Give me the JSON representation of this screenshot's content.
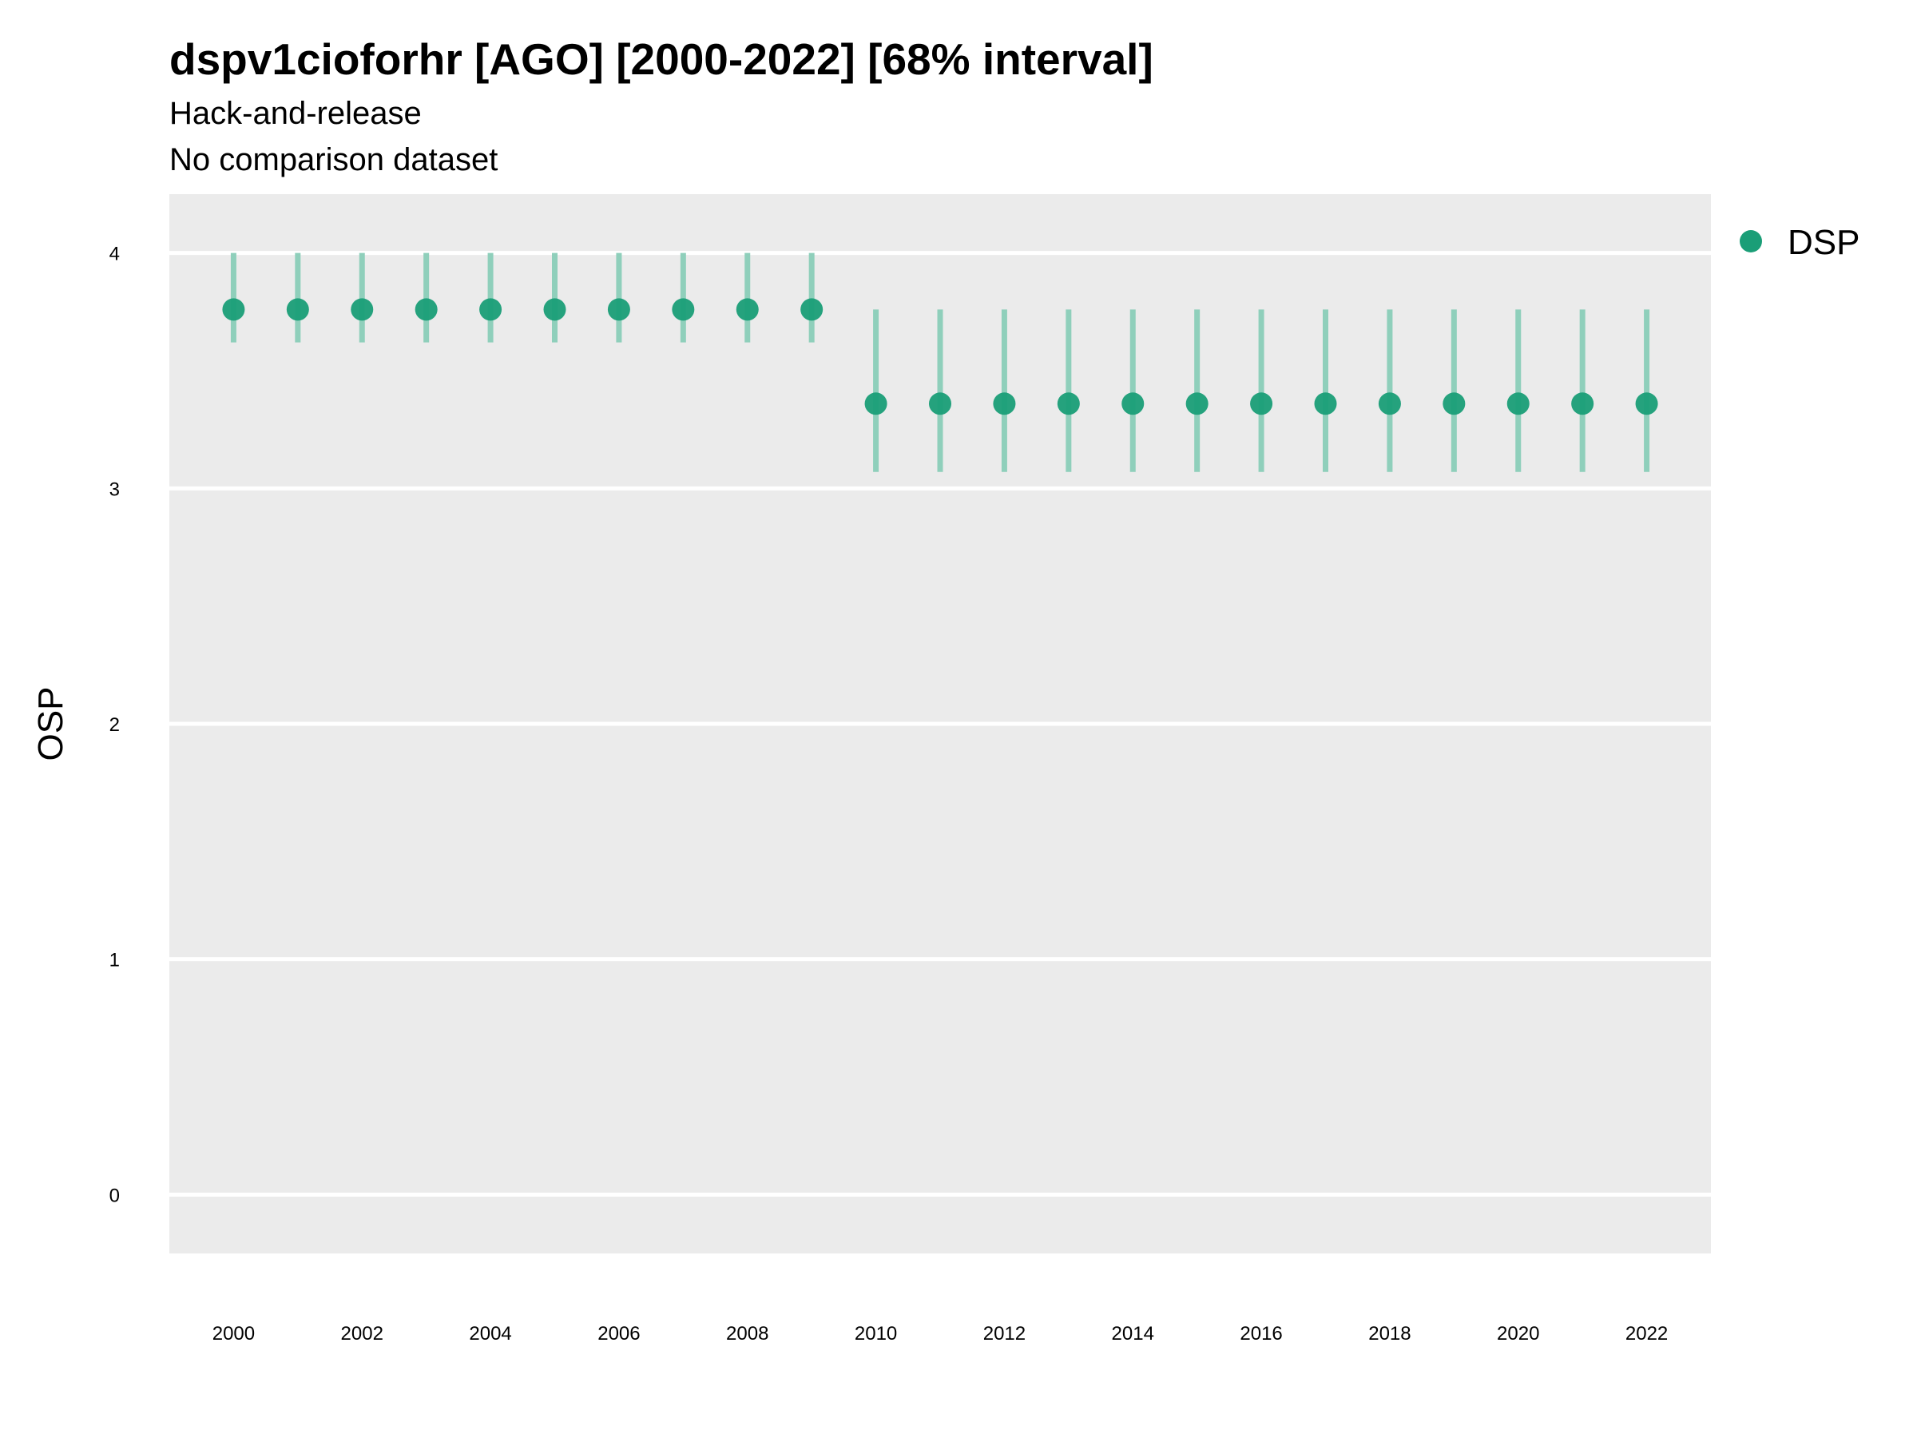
{
  "chart_data": {
    "type": "scatter",
    "title": "dspv1cioforhr [AGO] [2000-2022] [68% interval]",
    "subtitles": [
      "Hack-and-release",
      "No comparison dataset"
    ],
    "xlabel": "",
    "ylabel": "OSP",
    "xlim": [
      1999,
      2023
    ],
    "ylim": [
      -0.25,
      4.25
    ],
    "x_ticks": [
      "2000",
      "2002",
      "2004",
      "2006",
      "2008",
      "2010",
      "2012",
      "2014",
      "2016",
      "2018",
      "2020",
      "2022"
    ],
    "y_ticks": [
      "0",
      "1",
      "2",
      "3",
      "4"
    ],
    "grid": true,
    "legend": {
      "position": "top-right",
      "entries": [
        "DSP"
      ]
    },
    "colors": {
      "point": "#1a9e77",
      "interval": "#8fcfbb",
      "panel": "#ebebeb",
      "grid": "#ffffff"
    },
    "series": [
      {
        "name": "DSP",
        "x": [
          2000,
          2001,
          2002,
          2003,
          2004,
          2005,
          2006,
          2007,
          2008,
          2009,
          2010,
          2011,
          2012,
          2013,
          2014,
          2015,
          2016,
          2017,
          2018,
          2019,
          2020,
          2021,
          2022
        ],
        "y": [
          3.76,
          3.76,
          3.76,
          3.76,
          3.76,
          3.76,
          3.76,
          3.76,
          3.76,
          3.76,
          3.36,
          3.36,
          3.36,
          3.36,
          3.36,
          3.36,
          3.36,
          3.36,
          3.36,
          3.36,
          3.36,
          3.36,
          3.36
        ],
        "lower": [
          3.62,
          3.62,
          3.62,
          3.62,
          3.62,
          3.62,
          3.62,
          3.62,
          3.62,
          3.62,
          3.07,
          3.07,
          3.07,
          3.07,
          3.07,
          3.07,
          3.07,
          3.07,
          3.07,
          3.07,
          3.07,
          3.07,
          3.07
        ],
        "upper": [
          4.0,
          4.0,
          4.0,
          4.0,
          4.0,
          4.0,
          4.0,
          4.0,
          4.0,
          4.0,
          3.76,
          3.76,
          3.76,
          3.76,
          3.76,
          3.76,
          3.76,
          3.76,
          3.76,
          3.76,
          3.76,
          3.76,
          3.76
        ]
      }
    ]
  }
}
